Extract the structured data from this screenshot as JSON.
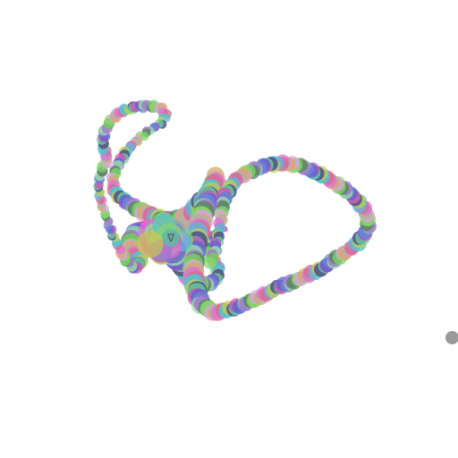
{
  "canvas": {
    "background_color": "#ffffff",
    "cursor_color": "#9a9a9a"
  },
  "artwork": {
    "description_icon": "looping-ribbon-of-circles",
    "center_glyph": "∇",
    "palette": [
      "#e86bd6",
      "#7fd66a",
      "#5a63d8",
      "#4fc8c8",
      "#d6a66b",
      "#a66bd6",
      "#6bd6a0",
      "#d66b8a",
      "#8ad66b",
      "#6b8ad6",
      "#c8c84f",
      "#b0b0b0",
      "#4f8a4f",
      "#d64fb0",
      "#66b3e0",
      "#e0a0e0",
      "#9fe09f",
      "#3f3f8f"
    ]
  }
}
